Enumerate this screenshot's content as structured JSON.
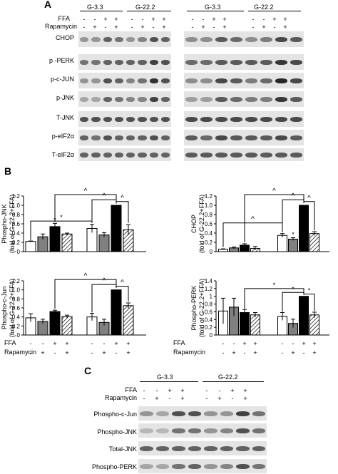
{
  "panelA": {
    "letter": "A",
    "groups": [
      "G-3.3",
      "G-22.2",
      "G-3.3",
      "G-22.2"
    ],
    "treatments": [
      {
        "label": "FFA",
        "signs": [
          "-",
          "-",
          "+",
          "+",
          "-",
          "-",
          "+",
          "+"
        ]
      },
      {
        "label": "Rapamycin",
        "signs": [
          "-",
          "+",
          "-",
          "+",
          "-",
          "+",
          "-",
          "+"
        ]
      }
    ],
    "rows": [
      "CHOP",
      "p -PERK",
      "p-c-JUN",
      "p-JNK",
      "T-JNK",
      "p-eIF2α",
      "T-eIF2α"
    ]
  },
  "panelB": {
    "letter": "B",
    "xrow": [
      {
        "label": "FFA",
        "signs": [
          "-",
          "-",
          "+",
          "+",
          "-",
          "-",
          "+",
          "+"
        ]
      },
      {
        "label": "Rapamycin",
        "signs": [
          "-",
          "+",
          "-",
          "+",
          "-",
          "+",
          "-",
          "+"
        ]
      }
    ]
  },
  "panelC": {
    "letter": "C",
    "groups": [
      "G-3.3",
      "G-22.2"
    ],
    "treatments": [
      {
        "label": "FFA",
        "signs": [
          "-",
          "-",
          "+",
          "+",
          "-",
          "-",
          "+",
          "+"
        ]
      },
      {
        "label": "Rapamycin",
        "signs": [
          "-",
          "+",
          "-",
          "+",
          "-",
          "+",
          "-",
          "+"
        ]
      }
    ],
    "rows": [
      "Phospho-c-Jun",
      "Phospho-JNK",
      "Total-JNK",
      "Phospho-PERK"
    ]
  },
  "chart_data": [
    {
      "type": "bar",
      "ylabel": "Phospho-JNK",
      "ylabel2": "(fold of G-22.2+FFA)",
      "ylim": [
        0,
        1.2
      ],
      "yticks": [
        "0",
        "0.2",
        "0.4",
        "0.6",
        "0.8",
        "1.0",
        "1.2"
      ],
      "values": [
        0.22,
        0.32,
        0.54,
        0.38,
        0.5,
        0.36,
        1.0,
        0.47
      ],
      "errors": [
        0.01,
        0.06,
        0.07,
        0.02,
        0.09,
        0.05,
        0.0,
        0.11
      ],
      "fills": [
        "white",
        "gray",
        "black",
        "hatch",
        "white",
        "gray",
        "black",
        "hatch"
      ],
      "star_labels": [
        "*",
        "*"
      ],
      "hat_labels": [
        "^",
        "^",
        "^"
      ]
    },
    {
      "type": "bar",
      "ylabel": "CHOP",
      "ylabel2": "(fold of  G-22.2+FFA)",
      "ylim": [
        0,
        1.2
      ],
      "yticks": [
        "0",
        "0.2",
        "0.4",
        "0.6",
        "0.8",
        "1.0",
        "1.2"
      ],
      "values": [
        0.05,
        0.08,
        0.14,
        0.07,
        0.35,
        0.27,
        1.0,
        0.39
      ],
      "errors": [
        0.01,
        0.02,
        0.03,
        0.04,
        0.04,
        0.03,
        0.0,
        0.04
      ],
      "fills": [
        "white",
        "gray",
        "black",
        "hatch",
        "white",
        "gray",
        "black",
        "hatch"
      ],
      "star_labels": [
        "*"
      ],
      "hat_labels": [
        "^",
        "^",
        "^",
        "^"
      ]
    },
    {
      "type": "bar",
      "ylabel": "Phospho-c-Jun",
      "ylabel2": "(fold of G-22.2+FFA)",
      "ylim": [
        0,
        1.2
      ],
      "yticks": [
        "0",
        "0.2",
        "0.4",
        "0.6",
        "0.8",
        "1.0",
        "1.2"
      ],
      "values": [
        0.38,
        0.3,
        0.52,
        0.41,
        0.4,
        0.28,
        1.0,
        0.65
      ],
      "errors": [
        0.09,
        0.05,
        0.03,
        0.03,
        0.08,
        0.07,
        0.0,
        0.06
      ],
      "fills": [
        "white",
        "gray",
        "black",
        "hatch",
        "white",
        "gray",
        "black",
        "hatch"
      ],
      "star_labels": [],
      "hat_labels": [
        "^",
        "^",
        "^"
      ]
    },
    {
      "type": "bar",
      "ylabel": "Phospho-PERK",
      "ylabel2": "(fold of G-22.2+FFA)",
      "ylim": [
        0,
        1.4
      ],
      "yticks": [
        "0",
        "0.2",
        "0.4",
        "0.6",
        "0.8",
        "1",
        "1.2",
        "1.4"
      ],
      "values": [
        0.62,
        0.72,
        0.58,
        0.52,
        0.48,
        0.3,
        1.0,
        0.52
      ],
      "errors": [
        0.33,
        0.23,
        0.08,
        0.06,
        0.1,
        0.11,
        0.0,
        0.07
      ],
      "fills": [
        "white",
        "gray",
        "black",
        "hatch",
        "white",
        "gray",
        "black",
        "hatch"
      ],
      "star_labels": [
        "*",
        "*",
        "*"
      ],
      "hat_labels": []
    }
  ]
}
